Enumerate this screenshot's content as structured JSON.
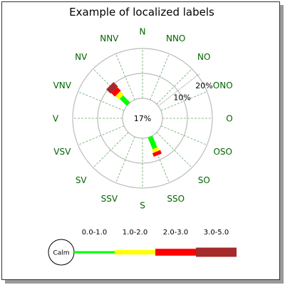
{
  "chart_data": {
    "type": "windrose",
    "title": "Example of localized labels",
    "directions": [
      "N",
      "NNO",
      "NO",
      "ONO",
      "O",
      "OSO",
      "SO",
      "SSO",
      "S",
      "SSV",
      "SV",
      "VSV",
      "V",
      "VNV",
      "NV",
      "NNV"
    ],
    "calm_label": "17%",
    "ring_labels": [
      "10%",
      "20%"
    ],
    "ring_values": [
      10,
      20
    ],
    "axis_max": 20,
    "legend": {
      "calm": "Calm",
      "bins": [
        "0.0-1.0",
        "1.0-2.0",
        "2.0-3.0",
        "3.0-5.0"
      ]
    },
    "colors": {
      "bins": [
        "#00ff00",
        "#ffff00",
        "#ff0000",
        "#a52a2a"
      ],
      "label": "#006400",
      "grid": "#bbbbbb",
      "spoke": "#66aa66",
      "frame": "#333333"
    },
    "series": [
      {
        "direction": "NV",
        "values": [
          4,
          2,
          2,
          2.5
        ]
      },
      {
        "direction": "SSO",
        "values": [
          5,
          1.5,
          1.5,
          0
        ]
      }
    ]
  }
}
